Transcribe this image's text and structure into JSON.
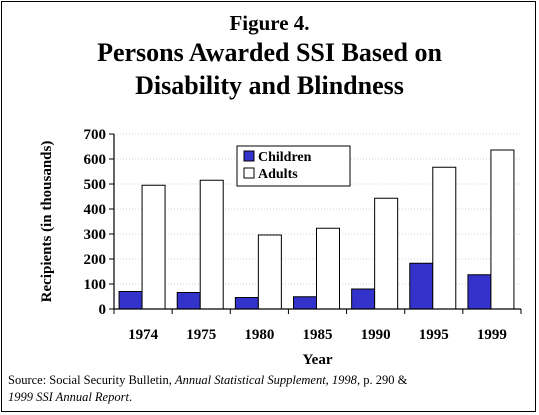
{
  "figure_label": "Figure 4.",
  "title_line1": "Persons Awarded SSI Based on",
  "title_line2": "Disability and Blindness",
  "chart_data": {
    "type": "bar",
    "categories": [
      "1974",
      "1975",
      "1980",
      "1985",
      "1990",
      "1995",
      "1999"
    ],
    "series": [
      {
        "name": "Children",
        "values": [
          70,
          66,
          46,
          49,
          80,
          183,
          137
        ],
        "color": "#3333cc"
      },
      {
        "name": "Adults",
        "values": [
          495,
          515,
          296,
          323,
          443,
          567,
          636
        ],
        "color": "#ffffff"
      }
    ],
    "xlabel": "Year",
    "ylabel": "Recipients (in thousands)",
    "ylim": [
      0,
      700
    ],
    "yticks": [
      0,
      100,
      200,
      300,
      400,
      500,
      600,
      700
    ],
    "grid": true,
    "legend": "top-center"
  },
  "source": {
    "prefix": "Source: Social Security Bulletin, ",
    "italic1": "Annual Statistical Supplement, 1998",
    "middle": ", p. 290 &",
    "italic2": "1999 SSI Annual Report",
    "suffix": "."
  }
}
